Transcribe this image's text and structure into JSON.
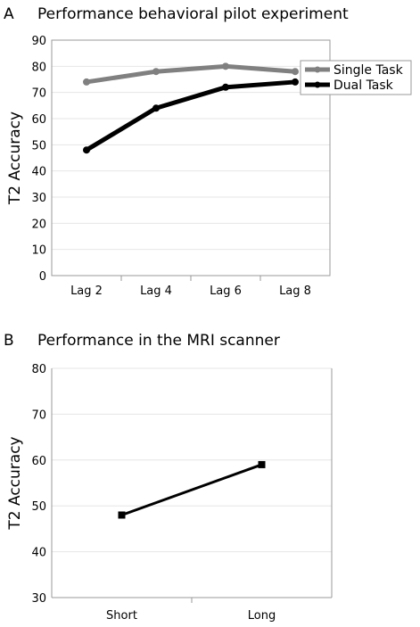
{
  "chart_data": [
    {
      "type": "line",
      "panel": "A",
      "title": "Performance behavioral pilot experiment",
      "xlabel": "",
      "ylabel": "T2 Accuracy",
      "categories": [
        "Lag 2",
        "Lag 4",
        "Lag 6",
        "Lag 8"
      ],
      "ylim": [
        0,
        90
      ],
      "yticks": [
        0,
        10,
        20,
        30,
        40,
        50,
        60,
        70,
        80,
        90
      ],
      "grid": true,
      "legend": "top-right",
      "series": [
        {
          "name": "Single Task",
          "color": "#808080",
          "values": [
            74,
            78,
            80,
            78
          ]
        },
        {
          "name": "Dual Task",
          "color": "#000000",
          "values": [
            48,
            64,
            72,
            74
          ]
        }
      ]
    },
    {
      "type": "line",
      "panel": "B",
      "title": "Performance in the MRI scanner",
      "xlabel": "",
      "ylabel": "T2 Accuracy",
      "categories": [
        "Short",
        "Long"
      ],
      "ylim": [
        30,
        80
      ],
      "yticks": [
        30,
        40,
        50,
        60,
        70,
        80
      ],
      "grid": true,
      "series": [
        {
          "color": "#000000",
          "values": [
            48,
            59
          ]
        }
      ]
    }
  ]
}
